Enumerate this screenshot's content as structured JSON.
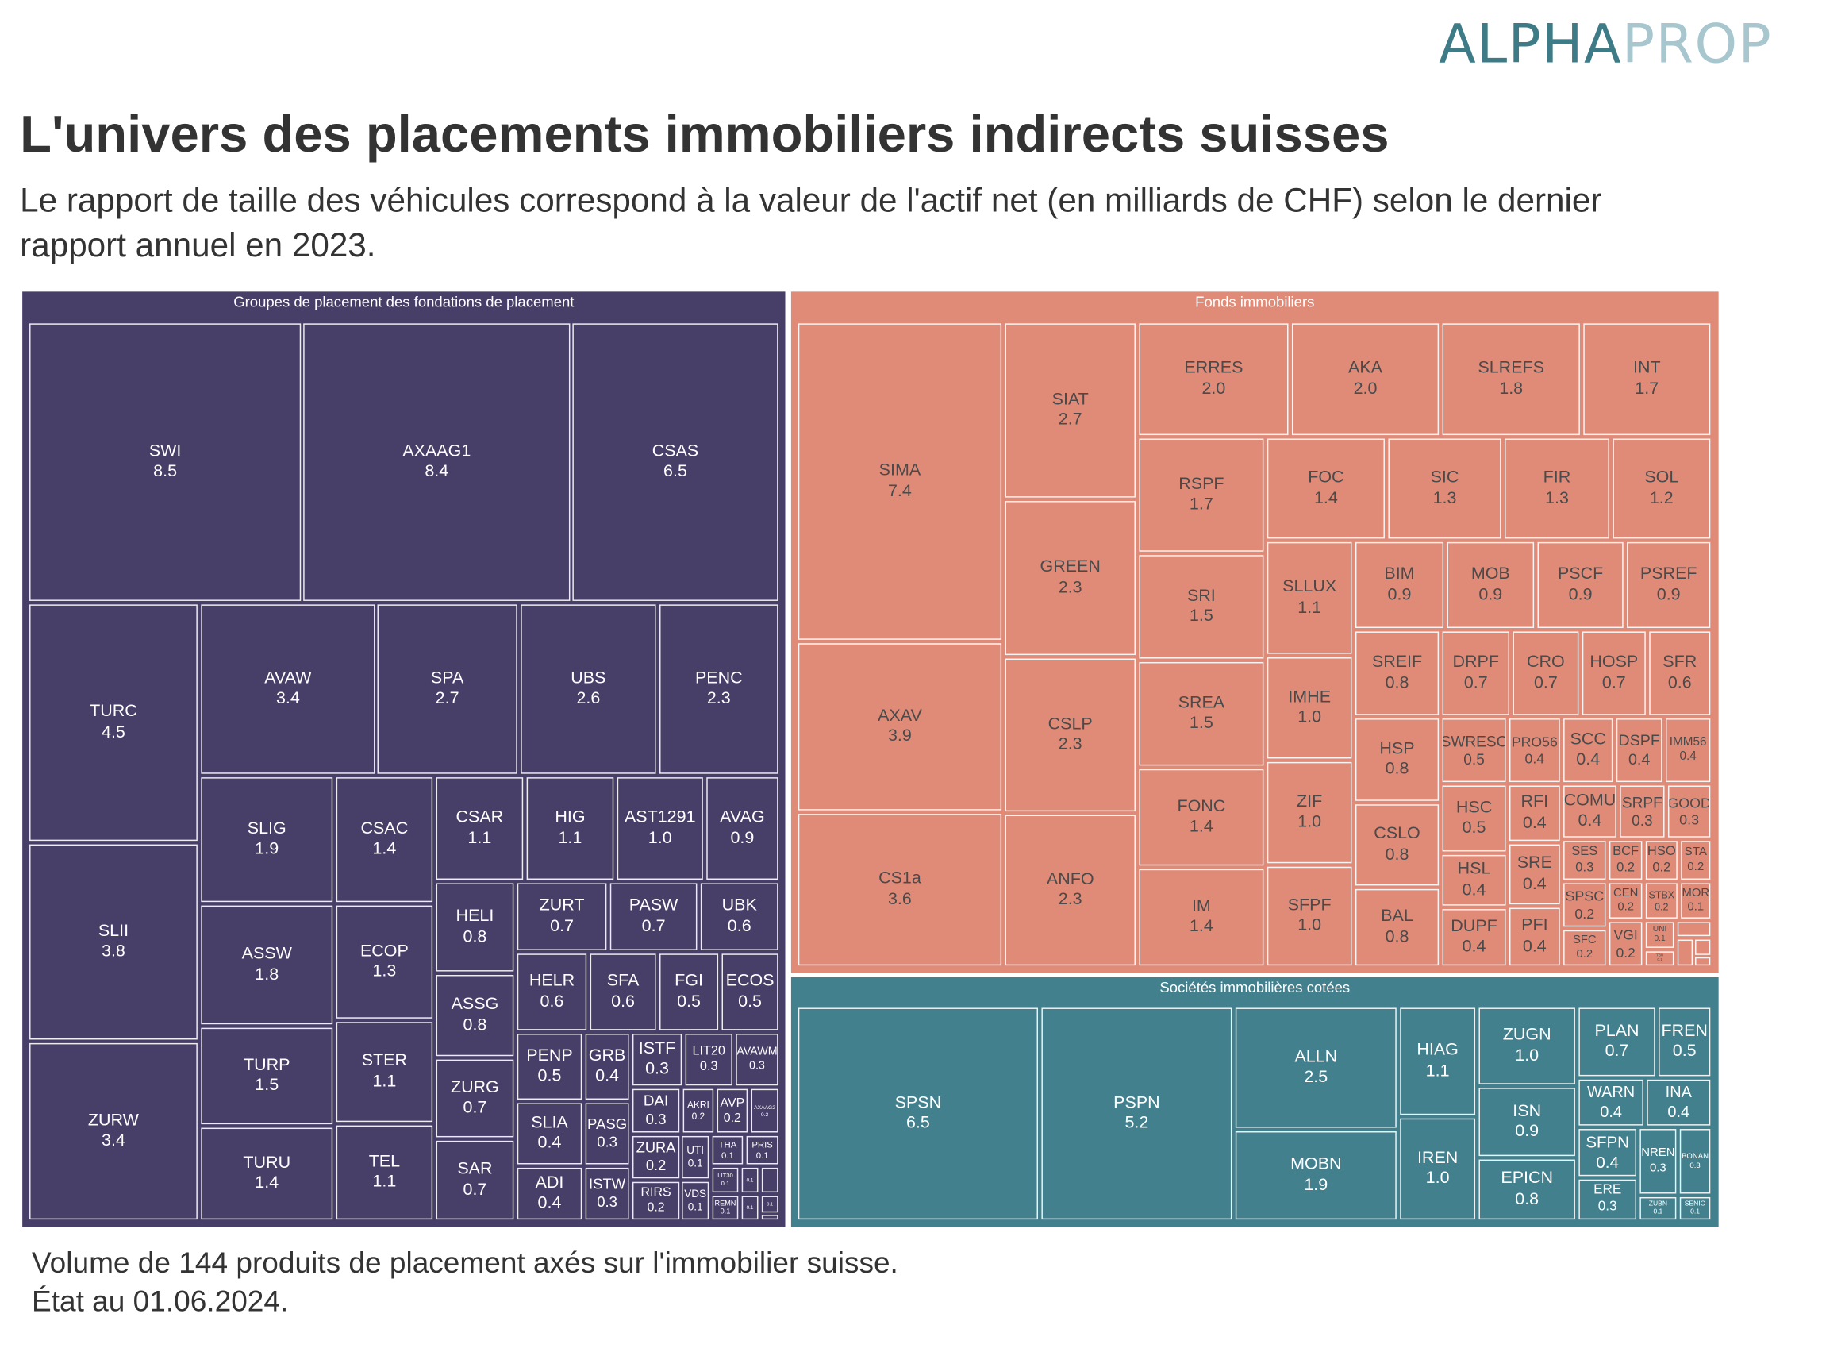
{
  "logo": {
    "part1": "ALPHA",
    "part2": "PROP"
  },
  "title": "L'univers des placements immobiliers indirects suisses",
  "subtitle": "Le rapport de taille des véhicules correspond à la valeur de l'actif net (en milliards de CHF) selon le dernier rapport annuel en 2023.",
  "footer": {
    "line1": "Volume de 144 produits de placement axés sur l'immobilier suisse.",
    "line2": "État au 01.06.2024."
  },
  "chart_data": {
    "type": "treemap",
    "unit": "milliards de CHF",
    "groups": [
      {
        "name": "Groupes de placement des fondations de placement",
        "color": "#483f69",
        "text_color": "#ffffff",
        "cells": [
          {
            "label": "SWI",
            "value": "8.5"
          },
          {
            "label": "AXAAG1",
            "value": "8.4"
          },
          {
            "label": "CSAS",
            "value": "6.5"
          },
          {
            "label": "TURC",
            "value": "4.5"
          },
          {
            "label": "SLII",
            "value": "3.8"
          },
          {
            "label": "ZURW",
            "value": "3.4"
          },
          {
            "label": "AVAW",
            "value": "3.4"
          },
          {
            "label": "SPA",
            "value": "2.7"
          },
          {
            "label": "UBS",
            "value": "2.6"
          },
          {
            "label": "PENC",
            "value": "2.3"
          },
          {
            "label": "SLIG",
            "value": "1.9"
          },
          {
            "label": "CSAC",
            "value": "1.4"
          },
          {
            "label": "ASSW",
            "value": "1.8"
          },
          {
            "label": "ECOP",
            "value": "1.3"
          },
          {
            "label": "TURP",
            "value": "1.5"
          },
          {
            "label": "STER",
            "value": "1.1"
          },
          {
            "label": "TURU",
            "value": "1.4"
          },
          {
            "label": "TEL",
            "value": "1.1"
          },
          {
            "label": "CSAR",
            "value": "1.1"
          },
          {
            "label": "HIG",
            "value": "1.1"
          },
          {
            "label": "AST1291",
            "value": "1.0"
          },
          {
            "label": "AVAG",
            "value": "0.9"
          },
          {
            "label": "HELI",
            "value": "0.8"
          },
          {
            "label": "ZURT",
            "value": "0.7"
          },
          {
            "label": "PASW",
            "value": "0.7"
          },
          {
            "label": "UBK",
            "value": "0.6"
          },
          {
            "label": "ASSG",
            "value": "0.8"
          },
          {
            "label": "ZURG",
            "value": "0.7"
          },
          {
            "label": "SAR",
            "value": "0.7"
          },
          {
            "label": "HELR",
            "value": "0.6"
          },
          {
            "label": "SFA",
            "value": "0.6"
          },
          {
            "label": "FGI",
            "value": "0.5"
          },
          {
            "label": "ECOS",
            "value": "0.5"
          },
          {
            "label": "PENP",
            "value": "0.5"
          },
          {
            "label": "SLIA",
            "value": "0.4"
          },
          {
            "label": "ADI",
            "value": "0.4"
          },
          {
            "label": "GRB",
            "value": "0.4"
          },
          {
            "label": "PASG",
            "value": "0.3"
          },
          {
            "label": "ISTW",
            "value": "0.3"
          },
          {
            "label": "ISTF",
            "value": "0.3"
          },
          {
            "label": "LIT20",
            "value": "0.3"
          },
          {
            "label": "AVAWM",
            "value": "0.3"
          },
          {
            "label": "DAI",
            "value": "0.3"
          },
          {
            "label": "AKRI",
            "value": "0.2"
          },
          {
            "label": "AVP",
            "value": "0.2"
          },
          {
            "label": "AXAAG2",
            "value": "0.2"
          },
          {
            "label": "ZURA",
            "value": "0.2"
          },
          {
            "label": "UTI",
            "value": "0.1"
          },
          {
            "label": "THA",
            "value": "0.1"
          },
          {
            "label": "PRIS",
            "value": "0.1"
          },
          {
            "label": "RIRS",
            "value": "0.2"
          },
          {
            "label": "VDS",
            "value": "0.1"
          },
          {
            "label": "LIT30",
            "value": "0.1"
          },
          {
            "label": "REMN",
            "value": "0.1"
          },
          {
            "label": "",
            "value": "0.1"
          },
          {
            "label": "",
            "value": ""
          },
          {
            "label": "",
            "value": "0.1"
          },
          {
            "label": "",
            "value": "0.1"
          },
          {
            "label": "",
            "value": ""
          }
        ]
      },
      {
        "name": "Fonds immobiliers",
        "color": "#e08b78",
        "text_color": "#4a4a4a",
        "cells": [
          {
            "label": "SIMA",
            "value": "7.4"
          },
          {
            "label": "AXAV",
            "value": "3.9"
          },
          {
            "label": "CS1a",
            "value": "3.6"
          },
          {
            "label": "SIAT",
            "value": "2.7"
          },
          {
            "label": "GREEN",
            "value": "2.3"
          },
          {
            "label": "CSLP",
            "value": "2.3"
          },
          {
            "label": "ANFO",
            "value": "2.3"
          },
          {
            "label": "ERRES",
            "value": "2.0"
          },
          {
            "label": "AKA",
            "value": "2.0"
          },
          {
            "label": "SLREFS",
            "value": "1.8"
          },
          {
            "label": "INT",
            "value": "1.7"
          },
          {
            "label": "RSPF",
            "value": "1.7"
          },
          {
            "label": "SRI",
            "value": "1.5"
          },
          {
            "label": "SREA",
            "value": "1.5"
          },
          {
            "label": "FONC",
            "value": "1.4"
          },
          {
            "label": "IM",
            "value": "1.4"
          },
          {
            "label": "FOC",
            "value": "1.4"
          },
          {
            "label": "SIC",
            "value": "1.3"
          },
          {
            "label": "FIR",
            "value": "1.3"
          },
          {
            "label": "SOL",
            "value": "1.2"
          },
          {
            "label": "SLLUX",
            "value": "1.1"
          },
          {
            "label": "IMHE",
            "value": "1.0"
          },
          {
            "label": "ZIF",
            "value": "1.0"
          },
          {
            "label": "SFPF",
            "value": "1.0"
          },
          {
            "label": "BIM",
            "value": "0.9"
          },
          {
            "label": "MOB",
            "value": "0.9"
          },
          {
            "label": "PSCF",
            "value": "0.9"
          },
          {
            "label": "PSREF",
            "value": "0.9"
          },
          {
            "label": "SREIF",
            "value": "0.8"
          },
          {
            "label": "HSP",
            "value": "0.8"
          },
          {
            "label": "CSLO",
            "value": "0.8"
          },
          {
            "label": "BAL",
            "value": "0.8"
          },
          {
            "label": "DRPF",
            "value": "0.7"
          },
          {
            "label": "CRO",
            "value": "0.7"
          },
          {
            "label": "HOSP",
            "value": "0.7"
          },
          {
            "label": "SFR",
            "value": "0.6"
          },
          {
            "label": "SWRESC",
            "value": "0.5"
          },
          {
            "label": "PRO56",
            "value": "0.4"
          },
          {
            "label": "SCC",
            "value": "0.4"
          },
          {
            "label": "DSPF",
            "value": "0.4"
          },
          {
            "label": "IMM56",
            "value": "0.4"
          },
          {
            "label": "HSC",
            "value": "0.5"
          },
          {
            "label": "HSL",
            "value": "0.4"
          },
          {
            "label": "DUPF",
            "value": "0.4"
          },
          {
            "label": "RFI",
            "value": "0.4"
          },
          {
            "label": "SRE",
            "value": "0.4"
          },
          {
            "label": "PFI",
            "value": "0.4"
          },
          {
            "label": "COMU",
            "value": "0.4"
          },
          {
            "label": "SRPF",
            "value": "0.3"
          },
          {
            "label": "GOOD",
            "value": "0.3"
          },
          {
            "label": "SES",
            "value": "0.3"
          },
          {
            "label": "BCF",
            "value": "0.2"
          },
          {
            "label": "HSO",
            "value": "0.2"
          },
          {
            "label": "STA",
            "value": "0.2"
          },
          {
            "label": "SPSC",
            "value": "0.2"
          },
          {
            "label": "CEN",
            "value": "0.2"
          },
          {
            "label": "STBX",
            "value": "0.2"
          },
          {
            "label": "MOR",
            "value": "0.1"
          },
          {
            "label": "SFC",
            "value": "0.2"
          },
          {
            "label": "VGI",
            "value": "0.2"
          },
          {
            "label": "UNI",
            "value": "0.1"
          },
          {
            "label": "TBU",
            "value": "0.1"
          },
          {
            "label": "",
            "value": ""
          },
          {
            "label": "",
            "value": ""
          },
          {
            "label": "",
            "value": ""
          },
          {
            "label": "",
            "value": ""
          }
        ]
      },
      {
        "name": "Sociétés immobilières cotées",
        "color": "#42808e",
        "text_color": "#ffffff",
        "cells": [
          {
            "label": "SPSN",
            "value": "6.5"
          },
          {
            "label": "PSPN",
            "value": "5.2"
          },
          {
            "label": "ALLN",
            "value": "2.5"
          },
          {
            "label": "MOBN",
            "value": "1.9"
          },
          {
            "label": "HIAG",
            "value": "1.1"
          },
          {
            "label": "IREN",
            "value": "1.0"
          },
          {
            "label": "ZUGN",
            "value": "1.0"
          },
          {
            "label": "ISN",
            "value": "0.9"
          },
          {
            "label": "EPICN",
            "value": "0.8"
          },
          {
            "label": "PLAN",
            "value": "0.7"
          },
          {
            "label": "FREN",
            "value": "0.5"
          },
          {
            "label": "WARN",
            "value": "0.4"
          },
          {
            "label": "INA",
            "value": "0.4"
          },
          {
            "label": "SFPN",
            "value": "0.4"
          },
          {
            "label": "ERE",
            "value": "0.3"
          },
          {
            "label": "NREN",
            "value": "0.3"
          },
          {
            "label": "BONAN",
            "value": "0.3"
          },
          {
            "label": "ZUBN",
            "value": "0.1"
          },
          {
            "label": "SENIO",
            "value": "0.1"
          }
        ]
      }
    ]
  }
}
